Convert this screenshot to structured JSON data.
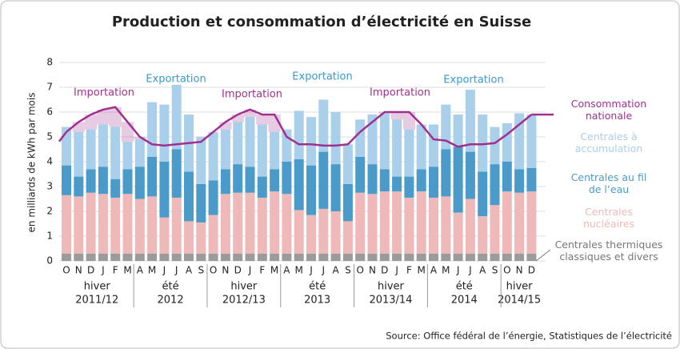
{
  "chart_data": {
    "type": "bar",
    "title": "Production et consommation d’électricité en Suisse",
    "y_label": "en milliards de kWh par mois",
    "source": "Source: Office fédéral de l’énergie, Statistiques de l’électricité",
    "ylim": [
      0,
      8
    ],
    "yticks": [
      0,
      1,
      2,
      3,
      4,
      5,
      6,
      7,
      8
    ],
    "grid": true,
    "stacked": true,
    "categories": [
      "O",
      "N",
      "D",
      "J",
      "F",
      "M",
      "A",
      "M",
      "J",
      "J",
      "A",
      "S",
      "O",
      "N",
      "D",
      "J",
      "F",
      "M",
      "A",
      "M",
      "J",
      "J",
      "A",
      "S",
      "O",
      "N",
      "D",
      "J",
      "F",
      "M",
      "A",
      "M",
      "J",
      "J",
      "A",
      "S",
      "O",
      "N",
      "D"
    ],
    "periods": [
      {
        "season": "hiver",
        "years": "2011/12"
      },
      {
        "season": "été",
        "years": "2012"
      },
      {
        "season": "hiver",
        "years": "2012/13"
      },
      {
        "season": "été",
        "years": "2013"
      },
      {
        "season": "hiver",
        "years": "2013/14"
      },
      {
        "season": "été",
        "years": "2014"
      },
      {
        "season": "hiver",
        "years": "2014/15"
      }
    ],
    "annotations": [
      {
        "text": "Importation",
        "color": "#a0308f"
      },
      {
        "text": "Exportation",
        "color": "#3a9ac8"
      },
      {
        "text": "Importation",
        "color": "#a0308f"
      },
      {
        "text": "Exportation",
        "color": "#3a9ac8"
      },
      {
        "text": "Importation",
        "color": "#a0308f"
      },
      {
        "text": "Exportation",
        "color": "#3a9ac8"
      }
    ],
    "series": [
      {
        "name": "Centrales thermiques classiques et divers",
        "color": "#9b9b9b",
        "values": [
          0.3,
          0.3,
          0.3,
          0.3,
          0.3,
          0.3,
          0.3,
          0.3,
          0.3,
          0.3,
          0.3,
          0.3,
          0.3,
          0.3,
          0.3,
          0.3,
          0.3,
          0.3,
          0.3,
          0.3,
          0.3,
          0.3,
          0.3,
          0.3,
          0.3,
          0.3,
          0.3,
          0.3,
          0.3,
          0.3,
          0.3,
          0.3,
          0.3,
          0.3,
          0.3,
          0.3,
          0.3,
          0.3,
          0.3
        ]
      },
      {
        "name": "Centrales nucléaires",
        "color": "#f0b9b9",
        "values": [
          2.35,
          2.3,
          2.45,
          2.4,
          2.25,
          2.4,
          2.2,
          2.3,
          1.45,
          2.25,
          1.3,
          1.25,
          1.55,
          2.4,
          2.45,
          2.45,
          2.25,
          2.5,
          2.4,
          1.75,
          1.55,
          1.8,
          1.7,
          1.3,
          2.45,
          2.4,
          2.5,
          2.5,
          2.25,
          2.5,
          2.25,
          2.3,
          1.65,
          2.2,
          1.5,
          1.95,
          2.5,
          2.45,
          2.5
        ]
      },
      {
        "name": "Centrales au fil de l’eau",
        "color": "#4a9bc9",
        "values": [
          1.2,
          0.8,
          0.95,
          1.1,
          0.75,
          1.0,
          1.3,
          1.6,
          2.25,
          1.95,
          2.0,
          1.55,
          1.4,
          1.0,
          1.15,
          1.05,
          0.85,
          0.9,
          1.3,
          2.05,
          2.0,
          2.3,
          1.9,
          1.5,
          1.45,
          1.2,
          0.9,
          0.6,
          0.85,
          0.9,
          1.25,
          1.9,
          2.65,
          1.9,
          1.8,
          1.65,
          1.2,
          0.95,
          0.95
        ]
      },
      {
        "name": "Centrales à accumulation",
        "color": "#a9cfea",
        "values": [
          1.55,
          1.8,
          1.6,
          1.7,
          2.1,
          1.1,
          1.1,
          2.2,
          2.3,
          2.6,
          2.3,
          1.9,
          1.95,
          1.6,
          1.7,
          2.0,
          2.1,
          1.5,
          1.3,
          1.95,
          1.95,
          2.1,
          2.1,
          1.6,
          1.5,
          2.0,
          2.25,
          2.3,
          1.9,
          1.8,
          1.7,
          1.8,
          1.3,
          2.5,
          2.3,
          1.5,
          1.55,
          2.25,
          2.15
        ]
      },
      {
        "name": "Consommation nationale",
        "type": "line",
        "color": "#a0308f",
        "values": [
          5.2,
          5.6,
          5.9,
          6.1,
          6.2,
          5.6,
          5.0,
          4.7,
          4.65,
          4.7,
          4.75,
          4.8,
          5.2,
          5.6,
          5.9,
          6.1,
          5.9,
          5.9,
          5.0,
          4.7,
          4.7,
          4.65,
          4.65,
          4.7,
          5.2,
          5.6,
          6.0,
          6.0,
          6.0,
          5.5,
          4.9,
          4.85,
          4.6,
          4.7,
          4.7,
          4.75,
          5.1,
          5.5,
          5.9
        ]
      }
    ]
  }
}
